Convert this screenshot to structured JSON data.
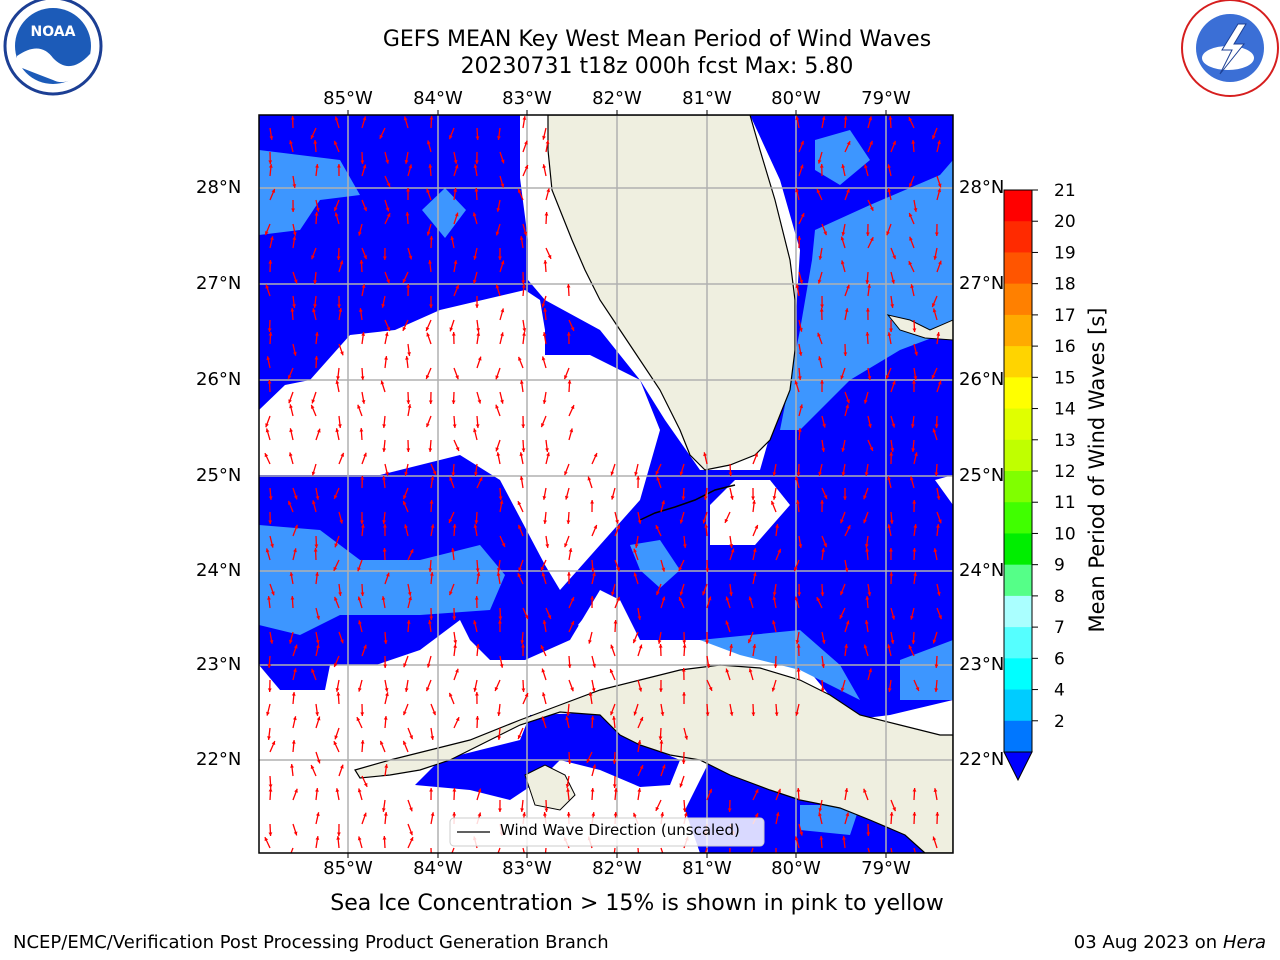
{
  "title_line1": "GEFS MEAN Key West Mean Period of Wind Waves",
  "title_line2": "20230731 t18z 000h fcst   Max: 5.80",
  "lon_labels": [
    "85°W",
    "84°W",
    "83°W",
    "82°W",
    "81°W",
    "80°W",
    "79°W"
  ],
  "lat_labels": [
    "28°N",
    "27°N",
    "26°N",
    "25°N",
    "24°N",
    "23°N",
    "22°N"
  ],
  "legend_label": "Wind Wave Direction (unscaled)",
  "colorbar": {
    "label": "Mean Period of Wind Waves [s]",
    "ticks": [
      "21",
      "20",
      "19",
      "18",
      "17",
      "16",
      "15",
      "14",
      "13",
      "12",
      "11",
      "10",
      "9",
      "8",
      "7",
      "6",
      "4",
      "2"
    ],
    "colors": [
      "#ff0000",
      "#ff2a00",
      "#ff5500",
      "#ff8000",
      "#ffaa00",
      "#ffd400",
      "#ffff00",
      "#e0ff00",
      "#c0ff00",
      "#80ff00",
      "#40ff00",
      "#00ee00",
      "#55ff88",
      "#aaffff",
      "#55ffff",
      "#00ffff",
      "#00ccff",
      "#0077ff"
    ]
  },
  "sea_ice_note": "Sea Ice Concentration > 15% is shown in pink to yellow",
  "footer_left": "NCEP/EMC/Verification Post Processing Product Generation Branch",
  "footer_right_date": "03 Aug 2023 on",
  "footer_right_host": "Hera",
  "logos": {
    "noaa": "NOAA",
    "nws": "NATIONAL WEATHER SERVICE"
  },
  "colors": {
    "ocean_low": "#0000ff",
    "ocean_mid": "#3d96ff",
    "land": "#efefe0",
    "arrow": "#ff0000"
  }
}
